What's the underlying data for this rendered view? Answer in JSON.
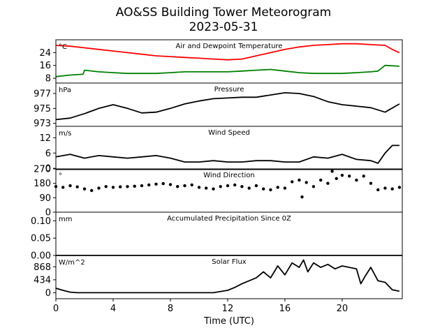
{
  "figure": {
    "title": "AO&SS Building Tower Meteorogram",
    "subtitle": "2023-05-31",
    "xlabel": "Time (UTC)",
    "xticks": [
      0,
      4,
      8,
      12,
      16,
      20
    ]
  },
  "chart_data": [
    {
      "type": "line",
      "title": "Air and Dewpoint Temperature",
      "unit": "°C",
      "xlim": [
        0,
        24.2
      ],
      "ylim": [
        5,
        32
      ],
      "yticks": [
        8,
        16,
        24
      ],
      "series": [
        {
          "name": "Air Temperature",
          "color": "#ff0000",
          "x": [
            0,
            1,
            2,
            3,
            4,
            5,
            6,
            7,
            8,
            9,
            10,
            11,
            12,
            13,
            14,
            15,
            16,
            17,
            18,
            19,
            20,
            21,
            22,
            23,
            23.5,
            24
          ],
          "values": [
            28.5,
            28,
            27,
            26,
            25,
            24,
            23,
            22,
            21.5,
            21,
            20.5,
            20,
            19.5,
            20,
            22,
            24,
            26,
            27.5,
            28.5,
            29,
            29.5,
            29.5,
            29,
            28.5,
            26,
            24
          ]
        },
        {
          "name": "Dewpoint Temperature",
          "color": "#008000",
          "x": [
            0,
            1,
            1.9,
            2,
            3,
            4,
            5,
            6,
            7,
            8,
            9,
            10,
            11,
            12,
            13,
            14,
            15,
            16,
            17,
            18,
            19,
            20,
            21,
            22,
            22.5,
            23,
            24
          ],
          "values": [
            9,
            10,
            10.5,
            13,
            12,
            11.5,
            11,
            11,
            11,
            11.5,
            12,
            12,
            12,
            12,
            12.5,
            13,
            13.5,
            12.5,
            11.5,
            11,
            11,
            11,
            11.5,
            12,
            12.5,
            16,
            15.5
          ]
        }
      ]
    },
    {
      "type": "line",
      "title": "Pressure",
      "unit": "hPa",
      "xlim": [
        0,
        24.2
      ],
      "ylim": [
        972.6,
        978.4
      ],
      "yticks": [
        973,
        975,
        977
      ],
      "series": [
        {
          "name": "Pressure",
          "color": "#000000",
          "x": [
            0,
            1,
            2,
            3,
            4,
            5,
            6,
            7,
            8,
            9,
            10,
            11,
            12,
            13,
            14,
            15,
            16,
            17,
            18,
            19,
            20,
            21,
            22,
            23,
            24
          ],
          "values": [
            973.5,
            973.7,
            974.3,
            975,
            975.5,
            975,
            974.4,
            974.5,
            975,
            975.6,
            976,
            976.3,
            976.4,
            976.5,
            976.5,
            976.8,
            977.1,
            977,
            976.6,
            975.9,
            975.5,
            975.3,
            975.1,
            974.5,
            975.6
          ]
        }
      ]
    },
    {
      "type": "line",
      "title": "Wind Speed",
      "unit": "m/s",
      "xlim": [
        0,
        24.2
      ],
      "ylim": [
        -0.5,
        16.5
      ],
      "yticks": [
        0,
        6,
        12
      ],
      "series": [
        {
          "name": "Wind Speed",
          "color": "#000000",
          "x": [
            0,
            1,
            2,
            3,
            4,
            5,
            6,
            7,
            8,
            9,
            10,
            11,
            12,
            13,
            14,
            15,
            16,
            17,
            18,
            19,
            20,
            21,
            22,
            22.5,
            23,
            23.5,
            24
          ],
          "values": [
            4.5,
            5.5,
            4,
            5,
            4.5,
            4,
            4.5,
            5,
            4,
            2.5,
            2.5,
            3,
            2.5,
            2.5,
            3,
            3,
            2.5,
            2.5,
            4.5,
            4,
            5.5,
            3.5,
            3,
            2,
            6,
            9,
            9
          ]
        }
      ]
    },
    {
      "type": "scatter",
      "title": "Wind Direction",
      "unit": "°",
      "xlim": [
        0,
        24.2
      ],
      "ylim": [
        0,
        270
      ],
      "yticks": [
        0,
        90,
        180,
        270
      ],
      "series": [
        {
          "name": "Wind Direction",
          "color": "#000000",
          "x": [
            0,
            0.5,
            1,
            1.5,
            2,
            2.5,
            3,
            3.5,
            4,
            4.5,
            5,
            5.5,
            6,
            6.5,
            7,
            7.5,
            8,
            8.5,
            9,
            9.5,
            10,
            10.5,
            11,
            11.5,
            12,
            12.5,
            13,
            13.5,
            14,
            14.5,
            15,
            15.5,
            16,
            16.5,
            17,
            17.2,
            17.5,
            18,
            18.5,
            19,
            19.3,
            19.6,
            20,
            20.5,
            21,
            21.5,
            22,
            22.5,
            23,
            23.5,
            24
          ],
          "values": [
            160,
            155,
            165,
            158,
            145,
            135,
            150,
            160,
            155,
            158,
            160,
            162,
            165,
            170,
            175,
            178,
            172,
            160,
            165,
            170,
            155,
            150,
            145,
            160,
            165,
            170,
            160,
            150,
            165,
            145,
            140,
            155,
            150,
            190,
            200,
            95,
            185,
            160,
            200,
            180,
            255,
            210,
            230,
            225,
            200,
            225,
            180,
            140,
            150,
            145,
            155
          ]
        }
      ]
    },
    {
      "type": "line",
      "title": "Accumulated Precipitation Since 0Z",
      "unit": "mm",
      "xlim": [
        0,
        24.2
      ],
      "ylim": [
        0,
        0.125
      ],
      "yticks": [
        0.0,
        0.05,
        0.1
      ],
      "ytick_labels": [
        "0.00",
        "0.05",
        "0.10"
      ],
      "series": [
        {
          "name": "Precipitation",
          "color": "#000000",
          "x": [
            0,
            24.2
          ],
          "values": [
            0,
            0
          ]
        }
      ]
    },
    {
      "type": "line",
      "title": "Solar Flux",
      "unit": "W/m^2",
      "xlim": [
        0,
        24.2
      ],
      "ylim": [
        -200,
        1250
      ],
      "yticks": [
        0,
        434,
        868
      ],
      "series": [
        {
          "name": "Solar Flux",
          "color": "#000000",
          "x": [
            0,
            0.5,
            1,
            1.5,
            2,
            4,
            6,
            8,
            10,
            11,
            12,
            12.5,
            13,
            13.5,
            14,
            14.5,
            15,
            15.5,
            16,
            16.5,
            17,
            17.3,
            17.6,
            18,
            18.5,
            19,
            19.5,
            20,
            20.5,
            21,
            21.3,
            21.6,
            22,
            22.5,
            23,
            23.5,
            24
          ],
          "values": [
            150,
            80,
            20,
            0,
            0,
            0,
            0,
            0,
            0,
            0,
            80,
            180,
            300,
            400,
            500,
            700,
            500,
            900,
            600,
            1000,
            850,
            1100,
            700,
            1000,
            850,
            950,
            800,
            900,
            850,
            800,
            300,
            550,
            850,
            400,
            350,
            100,
            50
          ]
        }
      ]
    }
  ]
}
